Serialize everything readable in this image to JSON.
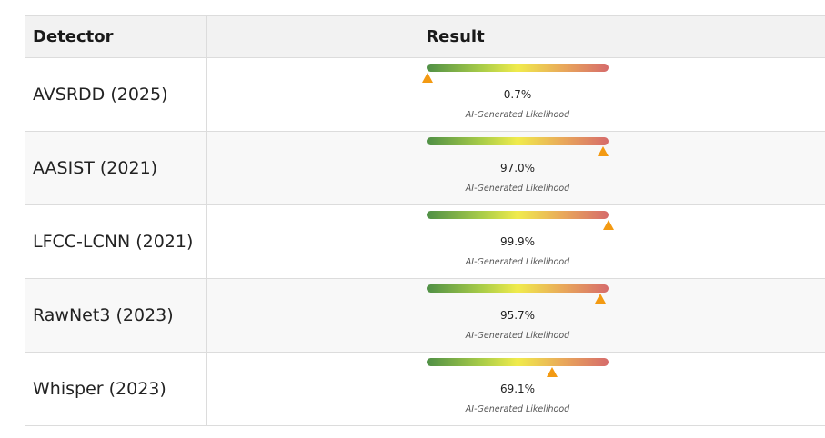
{
  "table": {
    "headers": {
      "detector": "Detector",
      "result": "Result"
    },
    "rows": [
      {
        "detector": "AVSRDD (2025)",
        "percent_label": "0.7%",
        "likelihood": 0.007,
        "caption": "AI-Generated Likelihood"
      },
      {
        "detector": "AASIST (2021)",
        "percent_label": "97.0%",
        "likelihood": 0.97,
        "caption": "AI-Generated Likelihood"
      },
      {
        "detector": "LFCC-LCNN (2021)",
        "percent_label": "99.9%",
        "likelihood": 0.999,
        "caption": "AI-Generated Likelihood"
      },
      {
        "detector": "RawNet3 (2023)",
        "percent_label": "95.7%",
        "likelihood": 0.957,
        "caption": "AI-Generated Likelihood"
      },
      {
        "detector": "Whisper (2023)",
        "percent_label": "69.1%",
        "likelihood": 0.691,
        "caption": "AI-Generated Likelihood"
      }
    ]
  },
  "colors": {
    "gradient_low": "#4f8f46",
    "gradient_mid": "#f0eb4c",
    "gradient_high": "#d66b6b",
    "marker": "#f39a12"
  }
}
